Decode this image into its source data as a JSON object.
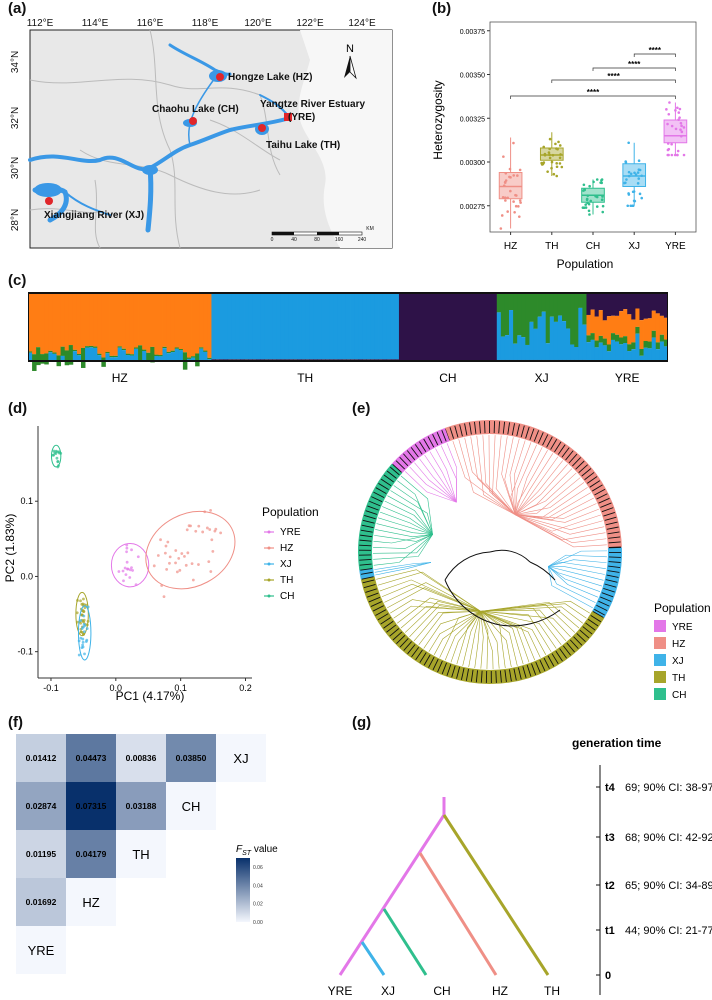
{
  "panel_labels": {
    "a": "(a)",
    "b": "(b)",
    "c": "(c)",
    "d": "(d)",
    "e": "(e)",
    "f": "(f)",
    "g": "(g)"
  },
  "colors": {
    "YRE": "#e377e8",
    "HZ": "#ef8f86",
    "XJ": "#3fb3e8",
    "TH": "#a7a52a",
    "CH": "#2fbf8d",
    "water": "#3a98e6",
    "land": "#e8e8e8",
    "orange": "#ff7d14",
    "blue": "#1b9be0",
    "green": "#2d8a2a",
    "purple": "#2e1248"
  },
  "map": {
    "lon_labels": [
      "112°E",
      "114°E",
      "116°E",
      "118°E",
      "120°E",
      "122°E",
      "124°E"
    ],
    "lat_labels": [
      "34°N",
      "32°N",
      "30°N",
      "28°N"
    ],
    "sites": [
      {
        "name": "Hongze Lake (HZ)"
      },
      {
        "name": "Chaohu Lake (CH)"
      },
      {
        "name": "Yangtze River Estuary",
        "name2": "(YRE)"
      },
      {
        "name": "Taihu Lake (TH)"
      },
      {
        "name": "Xiangjiang River (XJ)"
      }
    ],
    "north": "N",
    "scale_labels": [
      "0",
      "40",
      "80",
      "160",
      "240"
    ],
    "scale_unit": "KM"
  },
  "chart_data": [
    {
      "type": "box",
      "panel": "b",
      "title": "",
      "xlabel": "Population",
      "ylabel": "Heterozygosity",
      "categories": [
        "HZ",
        "TH",
        "CH",
        "XJ",
        "YRE"
      ],
      "yticks": [
        "0.00275",
        "0.00300",
        "0.00325",
        "0.00350",
        "0.00375"
      ],
      "ytick_values": [
        0.00275,
        0.003,
        0.00325,
        0.0035,
        0.00375
      ],
      "ylim": [
        0.0026,
        0.0038
      ],
      "boxes": [
        {
          "name": "HZ",
          "q1": 0.00279,
          "median": 0.00286,
          "q3": 0.00294,
          "whislo": 0.00262,
          "whishi": 0.00314
        },
        {
          "name": "TH",
          "q1": 0.00301,
          "median": 0.00304,
          "q3": 0.00308,
          "whislo": 0.00292,
          "whishi": 0.00317
        },
        {
          "name": "CH",
          "q1": 0.00277,
          "median": 0.00281,
          "q3": 0.00285,
          "whislo": 0.0027,
          "whishi": 0.0029
        },
        {
          "name": "XJ",
          "q1": 0.00286,
          "median": 0.00292,
          "q3": 0.00299,
          "whislo": 0.00275,
          "whishi": 0.00311
        },
        {
          "name": "YRE",
          "q1": 0.00311,
          "median": 0.00315,
          "q3": 0.00324,
          "whislo": 0.00304,
          "whishi": 0.00334
        }
      ],
      "significance": [
        {
          "pair": [
            "HZ",
            "YRE"
          ],
          "label": "****"
        },
        {
          "pair": [
            "TH",
            "YRE"
          ],
          "label": "****"
        },
        {
          "pair": [
            "CH",
            "YRE"
          ],
          "label": "****"
        },
        {
          "pair": [
            "XJ",
            "YRE"
          ],
          "label": "****"
        }
      ]
    },
    {
      "type": "bar",
      "panel": "c",
      "title": "",
      "description": "ADMIXTURE proportions per individual",
      "groups": [
        "HZ",
        "TH",
        "CH",
        "XJ",
        "YRE"
      ],
      "group_sizes": [
        45,
        46,
        24,
        22,
        20
      ],
      "components": [
        "orange",
        "blue",
        "green",
        "purple"
      ]
    },
    {
      "type": "scatter",
      "panel": "d",
      "xlabel": "PC1 (4.17%)",
      "ylabel": "PC2 (1.83%)",
      "xticks": [
        "-0.1",
        "0.0",
        "0.1",
        "0.2"
      ],
      "xtick_values": [
        -0.1,
        0.0,
        0.1,
        0.2
      ],
      "yticks": [
        "0.1",
        "0.0",
        "-0.1"
      ],
      "ytick_values": [
        0.1,
        0.0,
        -0.1
      ],
      "xlim": [
        -0.12,
        0.21
      ],
      "ylim": [
        -0.135,
        0.2
      ],
      "legend_title": "Population",
      "legend": [
        "YRE",
        "HZ",
        "XJ",
        "TH",
        "CH"
      ],
      "series": [
        {
          "name": "CH",
          "cx": -0.092,
          "cy": 0.16,
          "sx": 0.003,
          "sy": 0.006,
          "n": 15
        },
        {
          "name": "TH",
          "cx": -0.052,
          "cy": -0.05,
          "sx": 0.004,
          "sy": 0.012,
          "n": 35
        },
        {
          "name": "XJ",
          "cx": -0.048,
          "cy": -0.075,
          "sx": 0.004,
          "sy": 0.015,
          "n": 20
        },
        {
          "name": "YRE",
          "cx": 0.022,
          "cy": 0.015,
          "sx": 0.012,
          "sy": 0.012,
          "n": 18
        },
        {
          "name": "HZ",
          "cx": 0.115,
          "cy": 0.035,
          "sx": 0.03,
          "sy": 0.02,
          "n": 40
        }
      ]
    },
    {
      "type": "heatmap",
      "panel": "f",
      "row_labels": [
        "YRE",
        "HZ",
        "TH",
        "CH",
        "XJ"
      ],
      "cells": [
        {
          "row": 0,
          "col": 0,
          "value": 0.01412,
          "label": "0.01412"
        },
        {
          "row": 0,
          "col": 1,
          "value": 0.04473,
          "label": "0.04473"
        },
        {
          "row": 0,
          "col": 2,
          "value": 0.00836,
          "label": "0.00836"
        },
        {
          "row": 0,
          "col": 3,
          "value": 0.0385,
          "label": "0.03850"
        },
        {
          "row": 1,
          "col": 0,
          "value": 0.02874,
          "label": "0.02874"
        },
        {
          "row": 1,
          "col": 1,
          "value": 0.07315,
          "label": "0.07315"
        },
        {
          "row": 1,
          "col": 2,
          "value": 0.03188,
          "label": "0.03188"
        },
        {
          "row": 2,
          "col": 0,
          "value": 0.01195,
          "label": "0.01195"
        },
        {
          "row": 2,
          "col": 1,
          "value": 0.04179,
          "label": "0.04179"
        },
        {
          "row": 3,
          "col": 0,
          "value": 0.01692,
          "label": "0.01692"
        }
      ],
      "diag_labels": [
        "XJ",
        "CH",
        "TH",
        "HZ",
        "YRE"
      ],
      "colorbar_title_main": "F",
      "colorbar_title_sub": "ST",
      "colorbar_title_rest": " value",
      "colorbar_ticks": [
        "0.06",
        "0.04",
        "0.02",
        "0.00"
      ],
      "colorbar_range": [
        0.0,
        0.07
      ]
    }
  ],
  "tree_legend": {
    "title": "Population",
    "items": [
      "YRE",
      "HZ",
      "XJ",
      "TH",
      "CH"
    ]
  },
  "dendro": {
    "title": "generation time",
    "tips": [
      "YRE",
      "XJ",
      "CH",
      "HZ",
      "TH"
    ],
    "times": [
      {
        "label": "t4",
        "text": "69; 90% CI: 38-97"
      },
      {
        "label": "t3",
        "text": "68; 90% CI: 42-92"
      },
      {
        "label": "t2",
        "text": "65; 90% CI: 34-89"
      },
      {
        "label": "t1",
        "text": "44; 90% CI: 21-77"
      },
      {
        "label": "0",
        "text": ""
      }
    ]
  }
}
